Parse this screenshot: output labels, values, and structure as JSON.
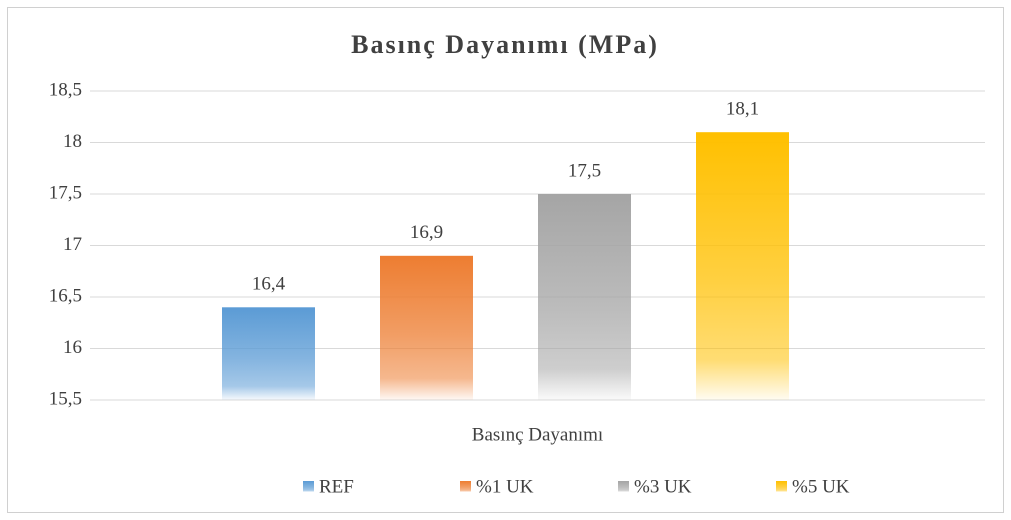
{
  "chart_data": {
    "type": "bar",
    "title": "Basınç Dayanımı (MPa)",
    "categories": [
      "Basınç Dayanımı"
    ],
    "series": [
      {
        "name": "REF",
        "color": "#5b9bd5",
        "values": [
          16.4
        ],
        "value_labels": [
          "16,4"
        ]
      },
      {
        "name": "%1 UK",
        "color": "#ed7d31",
        "values": [
          16.9
        ],
        "value_labels": [
          "16,9"
        ]
      },
      {
        "name": "%3 UK",
        "color": "#a5a5a5",
        "values": [
          17.5
        ],
        "value_labels": [
          "17,5"
        ]
      },
      {
        "name": "%5 UK",
        "color": "#ffc000",
        "values": [
          18.1
        ],
        "value_labels": [
          "18,1"
        ]
      }
    ],
    "ylim": [
      15.5,
      18.5
    ],
    "yticks": [
      {
        "value": 15.5,
        "label": "15,5"
      },
      16,
      {
        "value": 16.5,
        "label": "16,5"
      },
      17,
      {
        "value": 17.5,
        "label": "17,5"
      },
      18,
      {
        "value": 18.5,
        "label": "18,5"
      }
    ],
    "grid": true,
    "legend": "bottom"
  }
}
